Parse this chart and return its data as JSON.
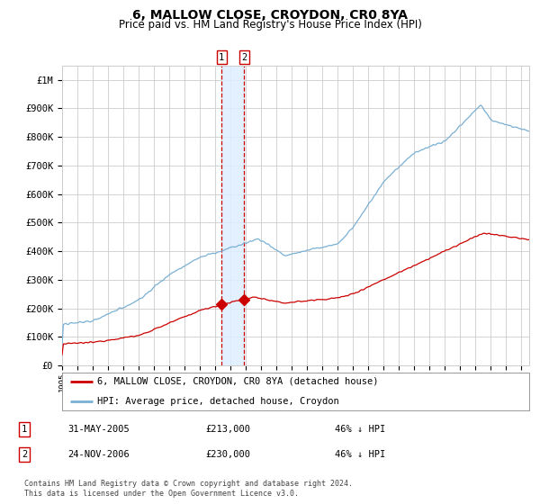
{
  "title": "6, MALLOW CLOSE, CROYDON, CR0 8YA",
  "subtitle": "Price paid vs. HM Land Registry's House Price Index (HPI)",
  "ylim": [
    0,
    1050000
  ],
  "yticks": [
    0,
    100000,
    200000,
    300000,
    400000,
    500000,
    600000,
    700000,
    800000,
    900000,
    1000000
  ],
  "ytick_labels": [
    "£0",
    "£100K",
    "£200K",
    "£300K",
    "£400K",
    "£500K",
    "£600K",
    "£700K",
    "£800K",
    "£900K",
    "£1M"
  ],
  "xlim_start": 1995.0,
  "xlim_end": 2025.5,
  "red_line_color": "#cc0000",
  "blue_line_color": "#7ab0d4",
  "grid_color": "#cccccc",
  "vspan_color": "#ddeeff",
  "background_color": "#ffffff",
  "legend_entries": [
    "6, MALLOW CLOSE, CROYDON, CR0 8YA (detached house)",
    "HPI: Average price, detached house, Croydon"
  ],
  "transaction1": {
    "label": "1",
    "date": "31-MAY-2005",
    "price": "£213,000",
    "hpi": "46% ↓ HPI",
    "year": 2005,
    "month": 5,
    "day": 31,
    "price_val": 213000
  },
  "transaction2": {
    "label": "2",
    "date": "24-NOV-2006",
    "price": "£230,000",
    "hpi": "46% ↓ HPI",
    "year": 2006,
    "month": 11,
    "day": 24,
    "price_val": 230000
  },
  "footnote": "Contains HM Land Registry data © Crown copyright and database right 2024.\nThis data is licensed under the Open Government Licence v3.0.",
  "title_fontsize": 10,
  "subtitle_fontsize": 8.5,
  "tick_fontsize": 7.5,
  "legend_fontsize": 7.5
}
